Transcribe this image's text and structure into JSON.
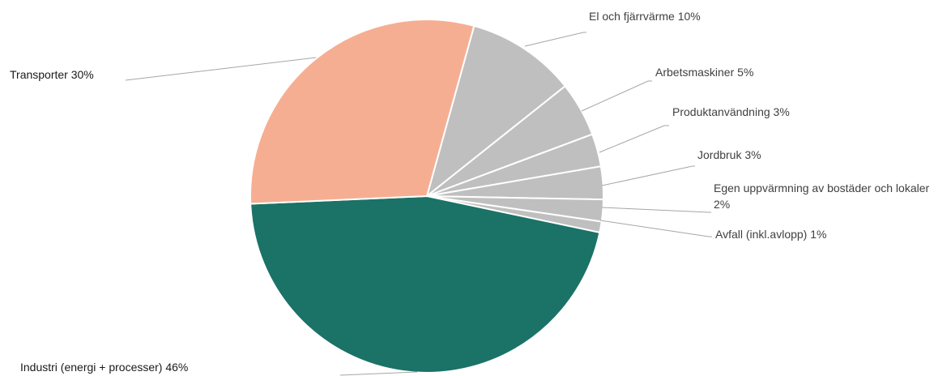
{
  "chart_data": {
    "type": "pie",
    "categories": [
      "El och fjärrvärme",
      "Arbetsmaskiner",
      "Produktanvändning",
      "Jordbruk",
      "Egen uppvärmning av bostäder och lokaler",
      "Avfall (inkl.avlopp)",
      "Industri (energi + processer)",
      "Transporter"
    ],
    "values": [
      10,
      5,
      3,
      3,
      2,
      1,
      46,
      30
    ],
    "value_labels": [
      "10%",
      "5%",
      "3%",
      "3%",
      "2%",
      "1%",
      "46%",
      "30%"
    ],
    "colors": [
      "#bfbfbf",
      "#bfbfbf",
      "#bfbfbf",
      "#bfbfbf",
      "#bfbfbf",
      "#bfbfbf",
      "#1b7266",
      "#f6ae93"
    ]
  }
}
